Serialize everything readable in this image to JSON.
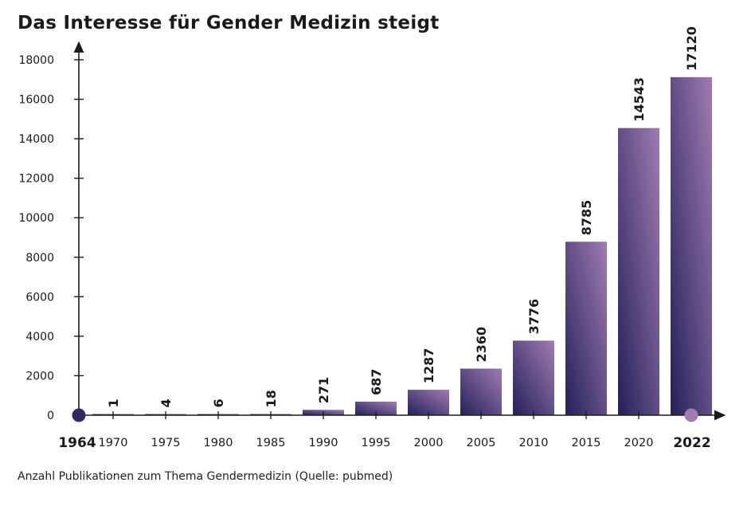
{
  "title": "Das Interesse für Gender Medizin steigt",
  "caption": "Anzahl Publikationen zum Thema Gendermedizin (Quelle: pubmed)",
  "colors": {
    "bar_top": "#a07cb0",
    "bar_bottom": "#23205a",
    "start_marker": "#2e2a66",
    "end_marker": "#a07cb0",
    "axis": "#1a1a1a"
  },
  "chart_data": {
    "type": "bar",
    "title": "Das Interesse für Gender Medizin steigt",
    "xlabel": "",
    "ylabel": "",
    "ylim": [
      0,
      18000
    ],
    "yticks": [
      "0",
      "2000",
      "4000",
      "6000",
      "8000",
      "10000",
      "12000",
      "14000",
      "16000",
      "18000"
    ],
    "axis_start_label": "1964",
    "axis_end_label": "2022",
    "categories": [
      "1970",
      "1975",
      "1980",
      "1985",
      "1990",
      "1995",
      "2000",
      "2005",
      "2010",
      "2015",
      "2020",
      "2022"
    ],
    "values": [
      1,
      4,
      6,
      18,
      271,
      687,
      1287,
      2360,
      3776,
      8785,
      14543,
      17120
    ],
    "value_labels": [
      "1",
      "4",
      "6",
      "18",
      "271",
      "687",
      "1287",
      "2360",
      "3776",
      "8785",
      "14543",
      "17120"
    ],
    "grid": false,
    "legend": "none"
  }
}
